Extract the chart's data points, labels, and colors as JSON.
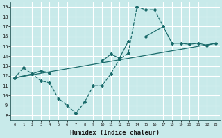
{
  "title": "",
  "xlabel": "Humidex (Indice chaleur)",
  "xlim": [
    -0.5,
    23.5
  ],
  "ylim": [
    7.5,
    19.5
  ],
  "xticks": [
    0,
    1,
    2,
    3,
    4,
    5,
    6,
    7,
    8,
    9,
    10,
    11,
    12,
    13,
    14,
    15,
    16,
    17,
    18,
    19,
    20,
    21,
    22,
    23
  ],
  "yticks": [
    8,
    9,
    10,
    11,
    12,
    13,
    14,
    15,
    16,
    17,
    18,
    19
  ],
  "bg_color": "#c8eaea",
  "grid_color": "#ffffff",
  "line_color": "#1a6b6b",
  "line1_x": [
    0,
    1,
    2,
    3,
    4,
    5,
    6,
    7,
    8,
    9,
    10,
    11,
    12,
    13,
    14,
    15,
    16,
    17
  ],
  "line1_y": [
    11.8,
    12.8,
    12.2,
    11.5,
    11.3,
    9.7,
    9.0,
    8.2,
    9.3,
    11.0,
    11.0,
    12.2,
    13.7,
    14.3,
    19.0,
    18.7,
    18.7,
    17.0
  ],
  "line2_x": [
    0,
    2,
    3,
    4,
    10,
    11,
    12,
    13,
    15,
    17,
    18,
    19,
    20,
    21,
    22,
    23
  ],
  "line2_y": [
    11.8,
    12.2,
    12.5,
    12.3,
    13.5,
    14.2,
    13.8,
    15.5,
    16.0,
    17.0,
    15.3,
    15.3,
    15.2,
    15.3,
    15.1,
    15.3
  ],
  "line3_x": [
    0,
    23
  ],
  "line3_y": [
    11.8,
    15.3
  ]
}
